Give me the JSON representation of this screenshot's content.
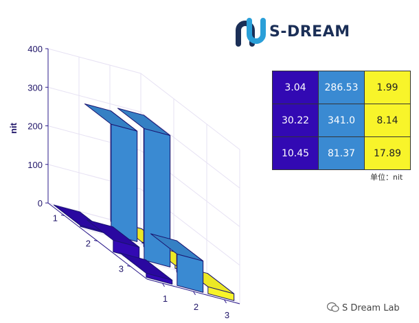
{
  "brand": {
    "name": "S-DREAM",
    "colors": {
      "dark": "#1b2f57",
      "light": "#2a9fd8"
    }
  },
  "chart_data": {
    "type": "bar3d",
    "zlabel": "nit",
    "zlim": [
      0,
      400
    ],
    "z_ticks": [
      "0",
      "100",
      "200",
      "300",
      "400"
    ],
    "x_ticks": [
      "1",
      "2",
      "3"
    ],
    "y_ticks": [
      "1",
      "2",
      "3"
    ],
    "values": [
      [
        3.04,
        286.53,
        1.99
      ],
      [
        30.22,
        341.0,
        8.14
      ],
      [
        10.45,
        81.37,
        17.89
      ]
    ],
    "column_colors": [
      "#3209b3",
      "#3a8ad2",
      "#f8f42a"
    ],
    "grid": true
  },
  "table": {
    "rows": [
      [
        "3.04",
        "286.53",
        "1.99"
      ],
      [
        "30.22",
        "341.0",
        "8.14"
      ],
      [
        "10.45",
        "81.37",
        "17.89"
      ]
    ],
    "unit_note": "单位：nit"
  },
  "watermark": "S Dream Lab"
}
